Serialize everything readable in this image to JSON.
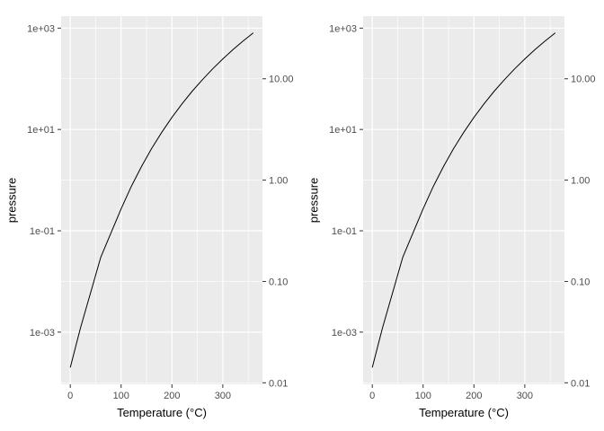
{
  "style": {
    "background": "#FFFFFF",
    "panel_bg": "#EBEBEB",
    "grid_major_color": "#FFFFFF",
    "grid_minor_color": "#FFFFFF",
    "tick_color": "#333333",
    "axis_text_color": "#4D4D4D",
    "axis_title_color": "#000000",
    "line_color": "#000000"
  },
  "chart_data": [
    {
      "type": "line",
      "title": "",
      "xlabel": "Temperature (°C)",
      "ylabel": "pressure",
      "y_scale": "log10",
      "x": [
        0,
        20,
        40,
        60,
        80,
        100,
        120,
        140,
        160,
        180,
        200,
        220,
        240,
        260,
        280,
        300,
        320,
        340,
        360
      ],
      "y": [
        0.0002,
        0.0012,
        0.006,
        0.03,
        0.09,
        0.27,
        0.75,
        1.85,
        4.2,
        8.8,
        17.3,
        32.1,
        57,
        96,
        157,
        247,
        376,
        558,
        806
      ],
      "xlim": [
        -18,
        378
      ],
      "ylim_log10": [
        -4.03,
        3.236
      ],
      "x_ticks": [
        {
          "v": 0,
          "label": "0"
        },
        {
          "v": 100,
          "label": "100"
        },
        {
          "v": 200,
          "label": "200"
        },
        {
          "v": 300,
          "label": "300"
        }
      ],
      "x_minor": [
        50,
        150,
        250,
        350
      ],
      "y_ticks": [
        {
          "log10": 3,
          "label": "1e+03"
        },
        {
          "log10": 1,
          "label": "1e+01"
        },
        {
          "log10": -1,
          "label": "1e-01"
        },
        {
          "log10": -3,
          "label": "1e-03"
        }
      ],
      "y_minor_log10": [
        2,
        0,
        -2,
        -4
      ],
      "y2_ticks": [
        {
          "log10": 2,
          "label": "10.00"
        },
        {
          "log10": 0,
          "label": "1.00"
        },
        {
          "log10": -2,
          "label": "0.10"
        },
        {
          "log10": -4,
          "label": "0.01"
        }
      ]
    },
    {
      "type": "line",
      "title": "",
      "xlabel": "Temperature (°C)",
      "ylabel": "pressure",
      "y_scale": "log10",
      "x": [
        0,
        20,
        40,
        60,
        80,
        100,
        120,
        140,
        160,
        180,
        200,
        220,
        240,
        260,
        280,
        300,
        320,
        340,
        360
      ],
      "y": [
        0.0002,
        0.0012,
        0.006,
        0.03,
        0.09,
        0.27,
        0.75,
        1.85,
        4.2,
        8.8,
        17.3,
        32.1,
        57,
        96,
        157,
        247,
        376,
        558,
        806
      ],
      "xlim": [
        -18,
        378
      ],
      "ylim_log10": [
        -4.03,
        3.236
      ],
      "x_ticks": [
        {
          "v": 0,
          "label": "0"
        },
        {
          "v": 100,
          "label": "100"
        },
        {
          "v": 200,
          "label": "200"
        },
        {
          "v": 300,
          "label": "300"
        }
      ],
      "x_minor": [
        50,
        150,
        250,
        350
      ],
      "y_ticks": [
        {
          "log10": 3,
          "label": "1e+03"
        },
        {
          "log10": 1,
          "label": "1e+01"
        },
        {
          "log10": -1,
          "label": "1e-01"
        },
        {
          "log10": -3,
          "label": "1e-03"
        }
      ],
      "y_minor_log10": [
        2,
        0,
        -2,
        -4
      ],
      "y2_ticks": [
        {
          "log10": 2,
          "label": "10.00"
        },
        {
          "log10": 0,
          "label": "1.00"
        },
        {
          "log10": -2,
          "label": "0.10"
        },
        {
          "log10": -4,
          "label": "0.01"
        }
      ]
    }
  ]
}
